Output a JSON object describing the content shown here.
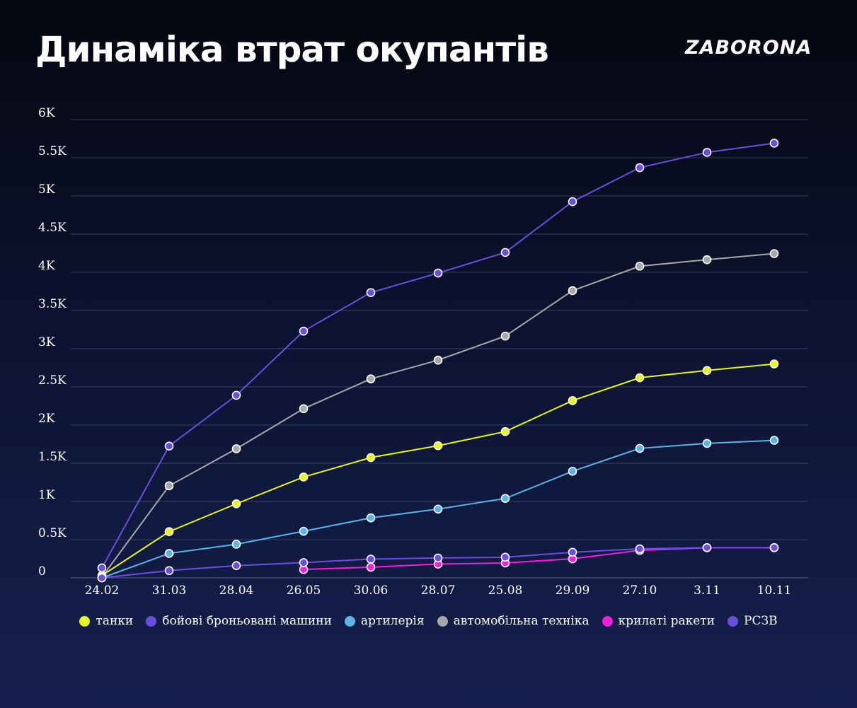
{
  "header": {
    "title": "Динаміка втрат окупантів",
    "logo": "ZABORONA"
  },
  "chart_data": {
    "type": "line",
    "title": "Динаміка втрат окупантів",
    "xlabel": "",
    "ylabel": "",
    "ylim": [
      0,
      6000
    ],
    "grid": true,
    "legend_position": "bottom-center",
    "categories": [
      "24.02",
      "31.03",
      "28.04",
      "26.05",
      "30.06",
      "28.07",
      "25.08",
      "29.09",
      "27.10",
      "3.11",
      "10.11"
    ],
    "y_ticks": [
      {
        "value": 0,
        "label": "0"
      },
      {
        "value": 500,
        "label": "0.5K"
      },
      {
        "value": 1000,
        "label": "1K"
      },
      {
        "value": 1500,
        "label": "1.5K"
      },
      {
        "value": 2000,
        "label": "2K"
      },
      {
        "value": 2500,
        "label": "2.5K"
      },
      {
        "value": 3000,
        "label": "3K"
      },
      {
        "value": 3500,
        "label": "3.5K"
      },
      {
        "value": 4000,
        "label": "4K"
      },
      {
        "value": 4500,
        "label": "4.5K"
      },
      {
        "value": 5000,
        "label": "5K"
      },
      {
        "value": 5500,
        "label": "5.5K"
      },
      {
        "value": 6000,
        "label": "6K"
      }
    ],
    "series": [
      {
        "name": "танки",
        "color": "#e8f51f",
        "values": [
          30,
          605,
          970,
          1320,
          1575,
          1730,
          1915,
          2320,
          2620,
          2715,
          2800
        ]
      },
      {
        "name": "бойові броньовані машини",
        "color": "#6b4ee0",
        "values": [
          130,
          1725,
          2390,
          3230,
          3735,
          3990,
          4260,
          4925,
          5370,
          5570,
          5690
        ]
      },
      {
        "name": "артилерія",
        "color": "#5ab4e8",
        "values": [
          0,
          320,
          440,
          610,
          785,
          900,
          1040,
          1395,
          1695,
          1760,
          1800
        ]
      },
      {
        "name": "автомобільна техніка",
        "color": "#a8a8a8",
        "values": [
          10,
          1205,
          1690,
          2215,
          2605,
          2850,
          3165,
          3760,
          4080,
          4165,
          4245
        ]
      },
      {
        "name": "крилаті ракети",
        "color": "#f21ee0",
        "values": [
          null,
          null,
          null,
          110,
          140,
          180,
          195,
          250,
          360,
          395,
          395
        ]
      },
      {
        "name": "РСЗВ",
        "color": "#6b4ee0",
        "values": [
          0,
          95,
          160,
          200,
          245,
          260,
          270,
          335,
          380,
          395,
          395
        ]
      }
    ]
  }
}
